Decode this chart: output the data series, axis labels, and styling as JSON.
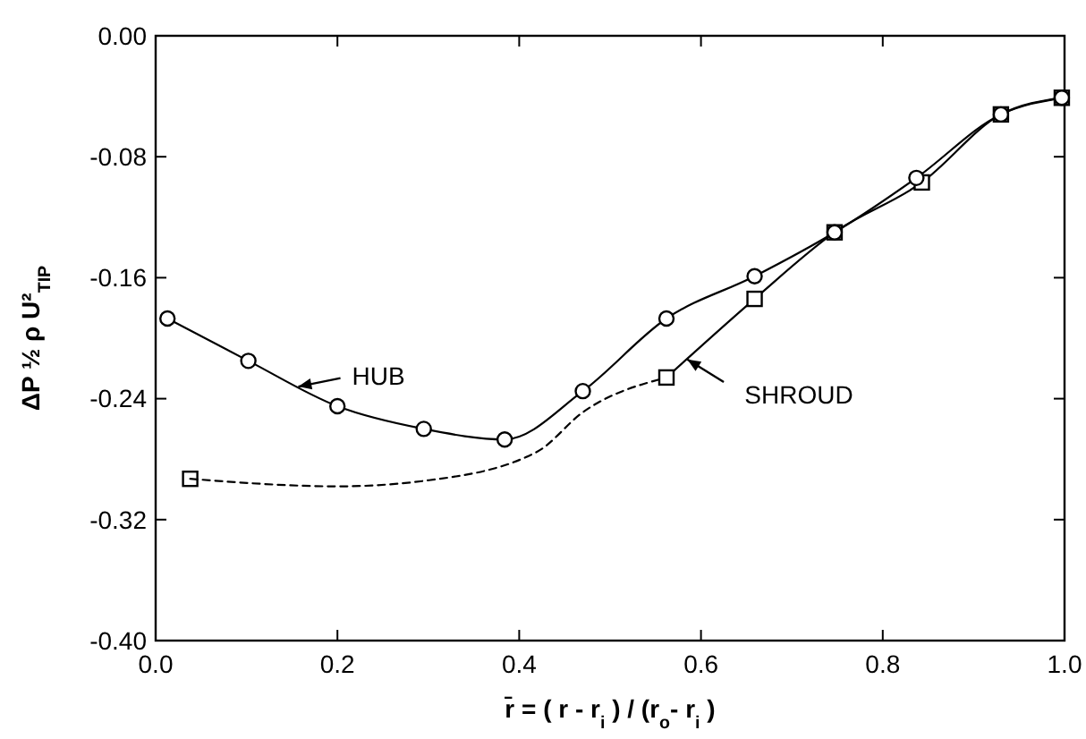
{
  "chart_data": {
    "type": "line",
    "xlabel": "r̄ = ( r - r$_{i}$ ) / (r$_{o}$- r$_{i}$ )",
    "ylabel": "ΔP ½ ρ U²$_{TIP}$",
    "xlim": [
      0,
      1
    ],
    "xticks": [
      {
        "value": 0,
        "label": "0.0"
      },
      {
        "value": 0.2,
        "label": "0.2"
      },
      {
        "value": 0.4,
        "label": "0.4"
      },
      {
        "value": 0.6,
        "label": "0.6"
      },
      {
        "value": 0.8,
        "label": "0.8"
      },
      {
        "value": 1,
        "label": "1.0"
      }
    ],
    "ylim": [
      -0.4,
      0
    ],
    "yticks": [
      {
        "value": -0.4,
        "label": "-0.40"
      },
      {
        "value": -0.32,
        "label": "-0.32"
      },
      {
        "value": -0.24,
        "label": "-0.24"
      },
      {
        "value": -0.16,
        "label": "-0.16"
      },
      {
        "value": -0.08,
        "label": "-0.08"
      },
      {
        "value": 0,
        "label": "0.00"
      }
    ],
    "grid": false,
    "series": [
      {
        "color": "#000000",
        "marker": "circle",
        "line_style": "solid",
        "x": [
          0.013,
          0.102,
          0.2,
          0.295,
          0.384,
          0.47,
          0.562,
          0.659,
          0.747,
          0.837,
          0.93,
          0.997
        ],
        "values": [
          -0.187,
          -0.215,
          -0.245,
          -0.26,
          -0.267,
          -0.235,
          -0.187,
          -0.159,
          -0.13,
          -0.094,
          -0.052,
          -0.041
        ]
      },
      {
        "color": "#000000",
        "marker": "square",
        "line_style": "solid",
        "x": [
          0.562,
          0.659,
          0.747,
          0.843,
          0.93,
          0.997
        ],
        "values": [
          -0.226,
          -0.174,
          -0.13,
          -0.097,
          -0.052,
          -0.041
        ]
      },
      {
        "color": "#000000",
        "marker": "none",
        "line_style": "dashed",
        "x": [
          0.038,
          0.2,
          0.3,
          0.42,
          0.47,
          0.562
        ],
        "values": [
          -0.293,
          -0.298,
          -0.294,
          -0.275,
          -0.249,
          -0.226
        ]
      },
      {
        "type": "scatter",
        "color": "#000000",
        "marker": "square",
        "x": [
          0.038
        ],
        "values": [
          -0.293
        ]
      }
    ],
    "annotations": [
      {
        "text": "HUB",
        "x": 0.157,
        "y": -0.232
      },
      {
        "text": "SHROUD",
        "x": 0.585,
        "y": -0.214
      }
    ]
  }
}
